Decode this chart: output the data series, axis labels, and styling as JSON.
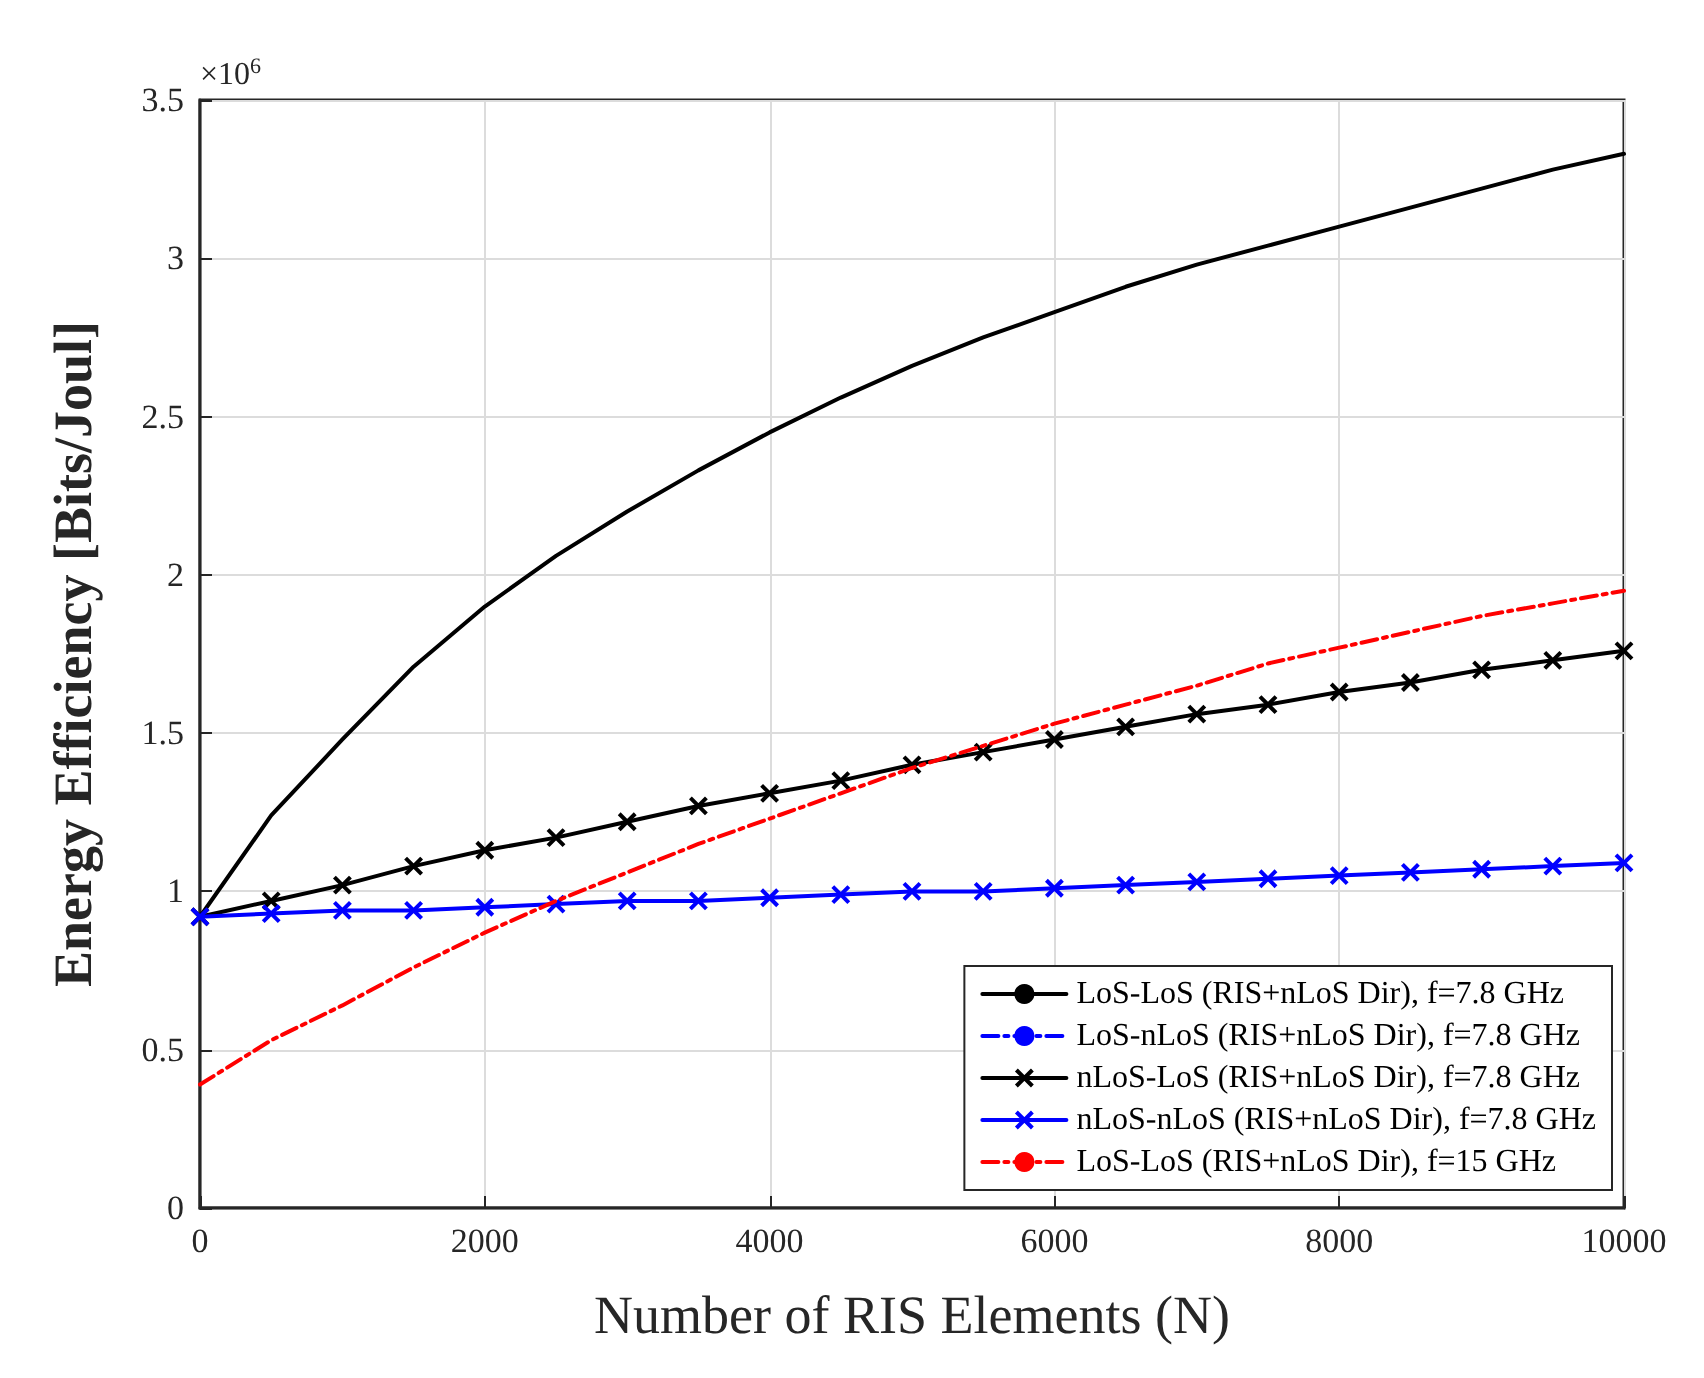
{
  "chart_data": {
    "type": "line",
    "xlabel": "Number of RIS Elements (N)",
    "ylabel": "Energy Efficiency [Bits/Joul]",
    "annotations": [
      "×10$^{6}$"
    ],
    "x": [
      0,
      500,
      1000,
      1500,
      2000,
      2500,
      3000,
      3500,
      4000,
      4500,
      5000,
      5500,
      6000,
      6500,
      7000,
      7500,
      8000,
      8500,
      9000,
      9500,
      10000
    ],
    "series": [
      {
        "name": "LoS-LoS (RIS+nLoS Dir), f=7.8 GHz",
        "color": "#000000",
        "line_style": "solid",
        "marker": "none",
        "values": [
          0.92,
          1.24,
          1.48,
          1.71,
          1.9,
          2.06,
          2.2,
          2.33,
          2.45,
          2.56,
          2.66,
          2.75,
          2.83,
          2.91,
          2.98,
          3.04,
          3.1,
          3.16,
          3.22,
          3.28,
          3.33
        ]
      },
      {
        "name": "LoS-nLoS (RIS+nLoS Dir), f=7.8 GHz",
        "color": "#0000ff",
        "line_style": "dashed",
        "marker": "none",
        "values": [
          null,
          null,
          null,
          null,
          null,
          null,
          null,
          null,
          null,
          null,
          null,
          null,
          null,
          null,
          null,
          null,
          null,
          null,
          null,
          null,
          null
        ]
      },
      {
        "name": "nLoS-LoS (RIS+nLoS Dir), f=7.8 GHz",
        "color": "#000000",
        "line_style": "solid",
        "marker": "cross",
        "values": [
          0.92,
          0.97,
          1.02,
          1.08,
          1.13,
          1.17,
          1.22,
          1.27,
          1.31,
          1.35,
          1.4,
          1.44,
          1.48,
          1.52,
          1.56,
          1.59,
          1.63,
          1.66,
          1.7,
          1.73,
          1.76
        ]
      },
      {
        "name": "nLoS-nLoS (RIS+nLoS Dir), f=7.8 GHz",
        "color": "#0000ff",
        "line_style": "solid",
        "marker": "cross",
        "values": [
          0.92,
          0.93,
          0.94,
          0.94,
          0.95,
          0.96,
          0.97,
          0.97,
          0.98,
          0.99,
          1.0,
          1.0,
          1.01,
          1.02,
          1.03,
          1.04,
          1.05,
          1.06,
          1.07,
          1.08,
          1.09
        ]
      },
      {
        "name": "LoS-LoS (RIS+nLoS Dir), f=15 GHz",
        "color": "#ff0000",
        "line_style": "dashed",
        "marker": "none",
        "values": [
          0.39,
          0.53,
          0.64,
          0.76,
          0.87,
          0.97,
          1.06,
          1.15,
          1.23,
          1.31,
          1.39,
          1.46,
          1.53,
          1.59,
          1.65,
          1.72,
          1.77,
          1.82,
          1.87,
          1.91,
          1.95
        ]
      }
    ],
    "xlim": [
      0,
      10000
    ],
    "xticks": [
      0,
      2000,
      4000,
      6000,
      8000,
      10000
    ],
    "ylim": [
      0,
      3.5
    ],
    "yticks": [
      0,
      0.5,
      1,
      1.5,
      2,
      2.5,
      3,
      3.5
    ],
    "grid": true,
    "legend": "bottom right"
  }
}
